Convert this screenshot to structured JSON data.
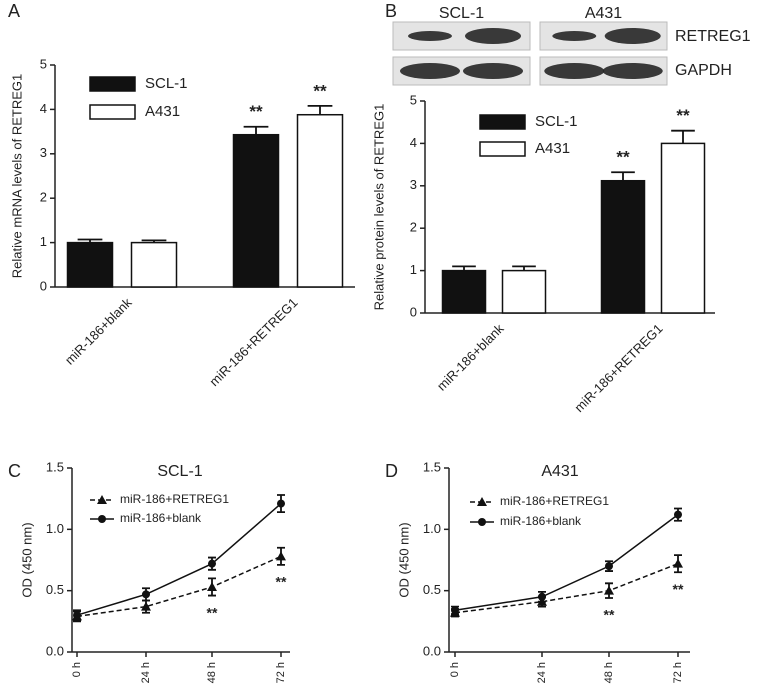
{
  "chart_data": [
    {
      "type": "bar",
      "panel": "A",
      "ylabel": "Relative mRNA levels of RETREG1",
      "categories": [
        "miR-186+blank",
        "miR-186+RETREG1"
      ],
      "series": [
        {
          "name": "SCL-1",
          "color": "#111111",
          "values": [
            1.0,
            3.43
          ],
          "errors": [
            0.07,
            0.18
          ],
          "annotations": [
            null,
            "**"
          ]
        },
        {
          "name": "A431",
          "color": "#ffffff",
          "values": [
            1.0,
            3.88
          ],
          "errors": [
            0.05,
            0.2
          ],
          "annotations": [
            null,
            "**"
          ]
        }
      ],
      "ylim": [
        0,
        5
      ],
      "yticks": [
        0,
        1,
        2,
        3,
        4,
        5
      ]
    },
    {
      "type": "bar",
      "panel": "B",
      "ylabel": "Relative protein levels of RETREG1",
      "blot": {
        "groups": [
          "SCL-1",
          "A431"
        ],
        "bands": [
          "RETREG1",
          "GAPDH"
        ]
      },
      "categories": [
        "miR-186+blank",
        "miR-186+RETREG1"
      ],
      "series": [
        {
          "name": "SCL-1",
          "color": "#111111",
          "values": [
            1.0,
            3.12
          ],
          "errors": [
            0.1,
            0.2
          ],
          "annotations": [
            null,
            "**"
          ]
        },
        {
          "name": "A431",
          "color": "#ffffff",
          "values": [
            1.0,
            4.0
          ],
          "errors": [
            0.1,
            0.3
          ],
          "annotations": [
            null,
            "**"
          ]
        }
      ],
      "ylim": [
        0,
        5
      ],
      "yticks": [
        0,
        1,
        2,
        3,
        4,
        5
      ]
    },
    {
      "type": "line",
      "panel": "C",
      "title": "SCL-1",
      "ylabel": "OD (450 nm)",
      "categories": [
        "0 h",
        "24 h",
        "48 h",
        "72 h"
      ],
      "series": [
        {
          "name": "miR-186+RETREG1",
          "color": "#111111",
          "dashed": true,
          "marker": "triangle",
          "values": [
            0.29,
            0.37,
            0.53,
            0.78
          ],
          "errors": [
            0.04,
            0.05,
            0.07,
            0.07
          ],
          "annotations": [
            null,
            null,
            "**",
            "**"
          ]
        },
        {
          "name": "miR-186+blank",
          "color": "#111111",
          "dashed": false,
          "marker": "circle",
          "values": [
            0.3,
            0.47,
            0.72,
            1.21
          ],
          "errors": [
            0.04,
            0.05,
            0.05,
            0.07
          ]
        }
      ],
      "ylim": [
        0,
        1.5
      ],
      "yticks": [
        {
          "value": 0,
          "label": "0.0"
        },
        0.5,
        {
          "value": 1,
          "label": "1.0"
        },
        1.5
      ]
    },
    {
      "type": "line",
      "panel": "D",
      "title": "A431",
      "ylabel": "OD (450 nm)",
      "categories": [
        "0 h",
        "24 h",
        "48 h",
        "72 h"
      ],
      "series": [
        {
          "name": "miR-186+RETREG1",
          "color": "#111111",
          "dashed": true,
          "marker": "triangle",
          "values": [
            0.32,
            0.41,
            0.5,
            0.72
          ],
          "errors": [
            0.03,
            0.04,
            0.06,
            0.07
          ],
          "annotations": [
            null,
            null,
            "**",
            "**"
          ]
        },
        {
          "name": "miR-186+blank",
          "color": "#111111",
          "dashed": false,
          "marker": "circle",
          "values": [
            0.34,
            0.45,
            0.7,
            1.12
          ],
          "errors": [
            0.03,
            0.04,
            0.04,
            0.05
          ]
        }
      ],
      "ylim": [
        0,
        1.5
      ],
      "yticks": [
        {
          "value": 0,
          "label": "0.0"
        },
        0.5,
        {
          "value": 1,
          "label": "1.0"
        },
        1.5
      ]
    }
  ]
}
